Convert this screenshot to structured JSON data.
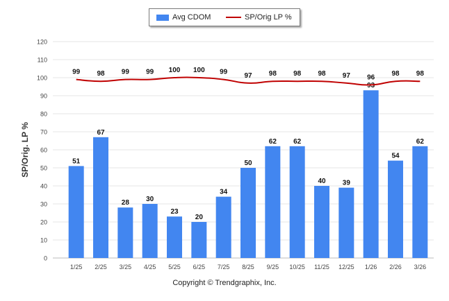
{
  "colors": {
    "bar": "#4286f0",
    "line": "#c00000",
    "grid": "#e6e6e6",
    "axis_text": "#444444"
  },
  "legend": {
    "bar_label": "Avg CDOM",
    "line_label": "SP/Orig LP %"
  },
  "copyright": "Copyright © Trendgraphix, Inc.",
  "chart_data": {
    "type": "bar",
    "categories": [
      "1/25",
      "2/25",
      "3/25",
      "4/25",
      "5/25",
      "6/25",
      "7/25",
      "8/25",
      "9/25",
      "10/25",
      "11/25",
      "12/25",
      "1/26",
      "2/26",
      "3/26"
    ],
    "series": [
      {
        "name": "Avg CDOM",
        "type": "bar",
        "values": [
          51,
          67,
          28,
          30,
          23,
          20,
          34,
          50,
          62,
          62,
          40,
          39,
          93,
          54,
          62
        ]
      },
      {
        "name": "SP/Orig LP %",
        "type": "line",
        "values": [
          99,
          98,
          99,
          99,
          100,
          100,
          99,
          97,
          98,
          98,
          98,
          97,
          96,
          98,
          98
        ]
      }
    ],
    "ylabel": "SP/Orig. LP %",
    "ylim": [
      0,
      120
    ],
    "yticks": [
      0,
      10,
      20,
      30,
      40,
      50,
      60,
      70,
      80,
      90,
      100,
      110,
      120
    ],
    "grid": true,
    "legend_position": "top-center"
  }
}
